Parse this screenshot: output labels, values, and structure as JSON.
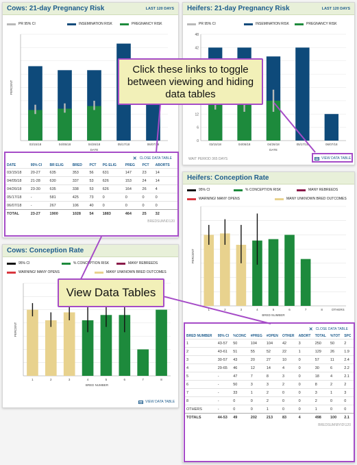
{
  "cards": {
    "cows_preg": {
      "title": "Cows: 21-day Pregnancy Risk",
      "badge": "LAST 120 DAYS",
      "legend": [
        "PR 95% CI",
        "INSEMINATION RISK",
        "PREGNANCY RISK"
      ],
      "wait": "WAIT PERIOD 365 DAYS",
      "link": "CLOSE DATA TABLE"
    },
    "heifers_preg": {
      "title": "Heifers: 21-day Pregnancy Risk",
      "badge": "LAST 120 DAYS",
      "legend": [
        "PR 95% CI",
        "INSEMINATION RISK",
        "PREGNANCY RISK"
      ],
      "wait": "WAIT PERIOD 365 DAYS",
      "link": "VIEW DATA TABLE"
    },
    "heifers_conc": {
      "title": "Heifers: Conception Rate",
      "legend": [
        "95% CI",
        "% CONCEPTION RISK",
        "MANY REBREEDS",
        "WARNING! MANY OPENS",
        "MANY UNKNOWN BRED OUTCOMES"
      ]
    },
    "cows_conc": {
      "title": "Cows: Conception Rate",
      "legend": [
        "95% CI",
        "% CONCEPTION RISK",
        "MANY REBREEDS",
        "WARNING! MANY OPENS",
        "MANY UNKNOWN BRED OUTCOMES"
      ],
      "link": "VIEW DATA TABLE"
    }
  },
  "colors": {
    "insem": "#0e4a7a",
    "preg": "#1d8a3c",
    "ci": "#b8b8b8",
    "conc_green": "#1d8a3c",
    "conc_tan": "#e8d28e",
    "rebreeds": "#8a1a4a",
    "opens": "#d9363e",
    "header": "#e8f0d9",
    "accent": "#a54bc7"
  },
  "callouts": {
    "toggle": "Click these links to toggle between viewing and hiding data tables",
    "view": "View Data Tables"
  },
  "cows_table": {
    "headers": [
      "DATE",
      "95% CI",
      "BR ELIG",
      "BRED",
      "PCT",
      "PG ELIG",
      "PREG",
      "PCT",
      "ABORTS"
    ],
    "rows": [
      [
        "03/15/18",
        "20-27",
        "635",
        "353",
        "56",
        "631",
        "147",
        "23",
        "14"
      ],
      [
        "04/05/18",
        "21-28",
        "630",
        "337",
        "53",
        "626",
        "153",
        "24",
        "14"
      ],
      [
        "04/26/18",
        "23-30",
        "635",
        "338",
        "53",
        "626",
        "164",
        "26",
        "4"
      ],
      [
        "05/17/18",
        "-",
        "581",
        "425",
        "73",
        "0",
        "0",
        "0",
        "0"
      ],
      [
        "06/07/18",
        "-",
        "267",
        "106",
        "40",
        "0",
        "0",
        "0",
        "0"
      ],
      [
        "TOTAL",
        "23-27",
        "1900",
        "1028",
        "54",
        "1883",
        "464",
        "25",
        "32"
      ]
    ],
    "footer": "BREDSUM\\ID120"
  },
  "heifers_table": {
    "headers": [
      "BRED NUMBER",
      "95% CI",
      "%CONC",
      "#PREG",
      "#OPEN",
      "OTHER",
      "ABORT",
      "TOTAL",
      "%TOT",
      "SPC"
    ],
    "rows": [
      [
        "1",
        "43-57",
        "50",
        "104",
        "104",
        "42",
        "3",
        "250",
        "50",
        "2"
      ],
      [
        "2",
        "43-61",
        "51",
        "55",
        "52",
        "22",
        "1",
        "129",
        "26",
        "1.9"
      ],
      [
        "3",
        "30-57",
        "43",
        "20",
        "27",
        "10",
        "0",
        "57",
        "11",
        "2.4"
      ],
      [
        "4",
        "29-65",
        "46",
        "12",
        "14",
        "4",
        "0",
        "30",
        "6",
        "2.2"
      ],
      [
        "5",
        "-",
        "47",
        "7",
        "8",
        "3",
        "0",
        "18",
        "4",
        "2.1"
      ],
      [
        "6",
        "-",
        "50",
        "3",
        "3",
        "2",
        "0",
        "8",
        "2",
        "2"
      ],
      [
        "7",
        "-",
        "33",
        "1",
        "2",
        "0",
        "0",
        "3",
        "1",
        "3"
      ],
      [
        "8",
        "-",
        "0",
        "0",
        "2",
        "0",
        "0",
        "2",
        "0",
        "0"
      ],
      [
        "OTHERS",
        "-",
        "0",
        "0",
        "1",
        "0",
        "0",
        "1",
        "0",
        "0"
      ],
      [
        "TOTALS",
        "44-53",
        "49",
        "202",
        "213",
        "83",
        "4",
        "498",
        "100",
        "2.1"
      ]
    ],
    "footer": "BREDSUM\\BYID\\120"
  },
  "chart_data": [
    {
      "type": "bar",
      "title": "Cows: 21-day Pregnancy Risk",
      "ylabel": "PERCENT",
      "xlabel": "DATE",
      "categories": [
        "03/15/18",
        "04/05/18",
        "04/26/18",
        "05/17/18",
        "06/07/18"
      ],
      "ylim": [
        0,
        80
      ],
      "yticks": [],
      "xticks": [
        "03/15/18",
        "04/05/18",
        "04/26/18",
        "05/17/18",
        "06/07/18"
      ],
      "series": [
        {
          "name": "INSEMINATION RISK",
          "values": [
            56,
            53,
            53,
            73,
            40
          ]
        },
        {
          "name": "PREGNANCY RISK",
          "values": [
            23,
            24,
            26,
            null,
            null
          ]
        }
      ],
      "ci": [
        [
          20,
          27
        ],
        [
          21,
          28
        ],
        [
          23,
          30
        ],
        null,
        null
      ]
    },
    {
      "type": "bar",
      "title": "Heifers: 21-day Pregnancy Risk",
      "ylabel": "PERCENT",
      "xlabel": "DATE",
      "categories": [
        "03/15/18",
        "04/05/18",
        "04/26/18",
        "05/17/18",
        "06/07/18"
      ],
      "ylim": [
        0,
        48
      ],
      "yticks": [
        "0",
        "6",
        "12",
        "18",
        "24",
        "30",
        "36",
        "42",
        "48"
      ],
      "xticks": [
        "03/15/18",
        "04/05/18",
        "04/26/18",
        "05/17/18",
        "06/07/18"
      ],
      "series": [
        {
          "name": "INSEMINATION RISK",
          "values": [
            42,
            42,
            38,
            42,
            12
          ]
        },
        {
          "name": "PREGNANCY RISK",
          "values": [
            18,
            18,
            18,
            null,
            null
          ]
        }
      ],
      "ci": [
        [
          14,
          22
        ],
        [
          13,
          22
        ],
        [
          13,
          23
        ],
        null,
        null
      ]
    },
    {
      "type": "bar",
      "title": "Heifers: Conception Rate",
      "ylabel": "PERCENT",
      "xlabel": "BRED NUMBER",
      "categories": [
        "1",
        "2",
        "3",
        "4",
        "5",
        "6",
        "7",
        "8",
        "OTHERS"
      ],
      "ylim": [
        0,
        70
      ],
      "yticks": [],
      "xticks": [
        "1",
        "2",
        "3",
        "4",
        "5",
        "6",
        "7",
        "8",
        "OTHERS"
      ],
      "series": [
        {
          "name": "% CONCEPTION RISK",
          "values": [
            50,
            51,
            43,
            46,
            47,
            50,
            33,
            0,
            0
          ]
        }
      ],
      "ci": [
        [
          43,
          57
        ],
        [
          43,
          61
        ],
        [
          30,
          57
        ],
        [
          29,
          65
        ],
        null,
        null,
        null,
        null,
        null
      ],
      "bar_status": [
        "unknown",
        "unknown",
        "unknown",
        "normal",
        "normal",
        "normal",
        "normal",
        "normal",
        "normal"
      ]
    },
    {
      "type": "bar",
      "title": "Cows: Conception Rate",
      "ylabel": "PERCENT",
      "xlabel": "BRED NUMBER",
      "categories": [
        "1",
        "2",
        "3",
        "4",
        "5",
        "6",
        "7",
        "8"
      ],
      "ylim": [
        0,
        70
      ],
      "yticks": [],
      "xticks": [
        "1",
        "2",
        "3",
        "4",
        "5",
        "6",
        "7",
        "8"
      ],
      "series": [
        {
          "name": "% CONCEPTION RISK",
          "values": [
            50,
            42,
            48,
            42,
            46,
            46,
            20,
            50
          ]
        }
      ],
      "ci": [
        [
          45,
          55
        ],
        [
          37,
          48
        ],
        [
          42,
          54
        ],
        [
          33,
          52
        ],
        [
          37,
          54
        ],
        [
          33,
          57
        ],
        null,
        null
      ],
      "bar_status": [
        "unknown",
        "unknown",
        "unknown",
        "normal",
        "normal",
        "normal",
        "normal",
        "normal"
      ]
    }
  ]
}
